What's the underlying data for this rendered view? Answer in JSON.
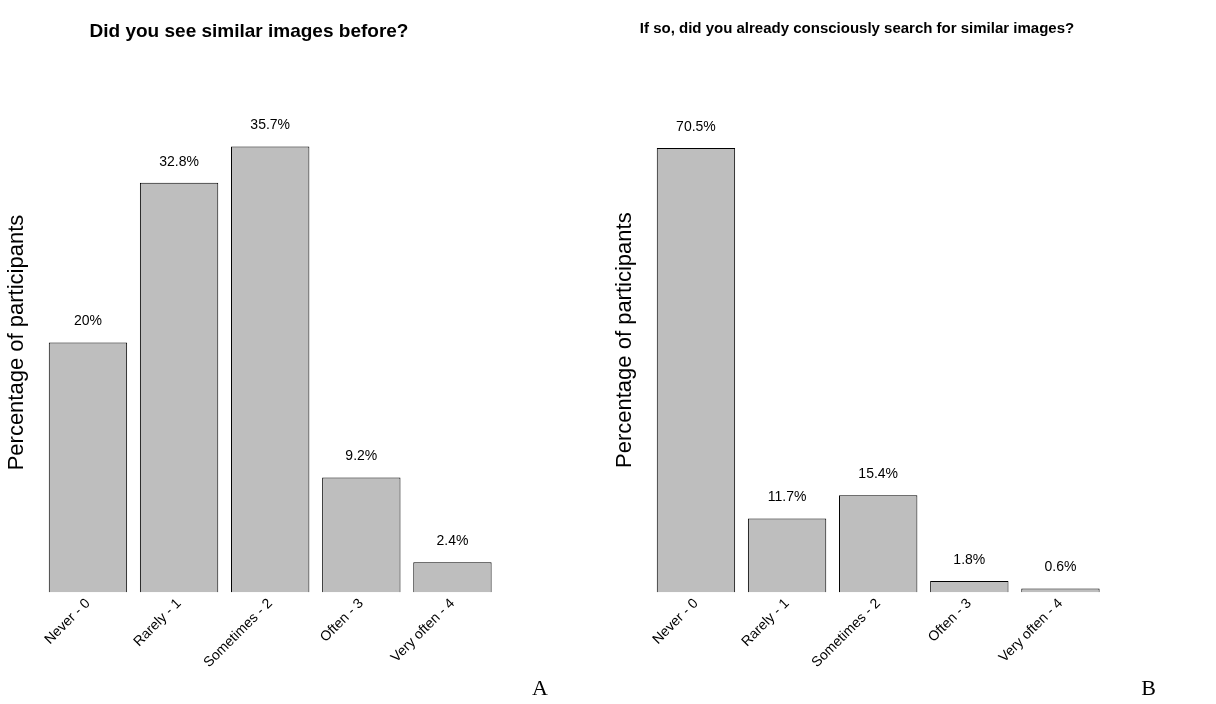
{
  "chart_data": [
    {
      "type": "bar",
      "title": "Did you see similar images before?",
      "ylabel": "Percentage of participants",
      "categories": [
        "Never - 0",
        "Rarely - 1",
        "Sometimes - 2",
        "Often - 3",
        "Very often - 4"
      ],
      "values": [
        20,
        32.8,
        35.7,
        9.2,
        2.4
      ],
      "value_labels": [
        "20%",
        "32.8%",
        "35.7%",
        "9.2%",
        "2.4%"
      ],
      "color": "#bebebe",
      "tick_labels": "x",
      "grid": false,
      "legend": false,
      "annotations": [
        "A"
      ]
    },
    {
      "type": "bar",
      "title": "If so, did you already consciously search for similar images?",
      "ylabel": "Percentage of participants",
      "categories": [
        "Never - 0",
        "Rarely - 1",
        "Sometimes - 2",
        "Often - 3",
        "Very often - 4"
      ],
      "values": [
        70.5,
        11.7,
        15.4,
        1.8,
        0.6
      ],
      "value_labels": [
        "70.5%",
        "11.7%",
        "15.4%",
        "1.8%",
        "0.6%"
      ],
      "color": "#bebebe",
      "tick_labels": "x",
      "grid": false,
      "legend": false,
      "annotations": [
        "B"
      ]
    }
  ]
}
